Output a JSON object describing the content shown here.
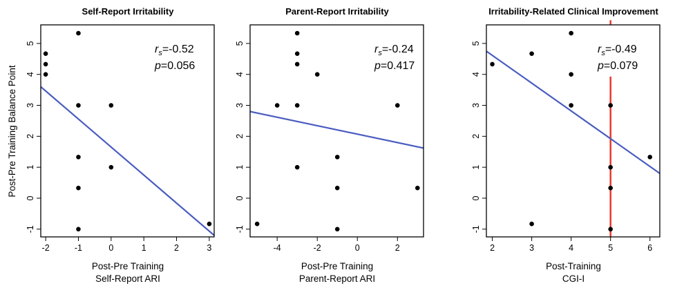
{
  "chart_data": [
    {
      "type": "scatter",
      "title": "Self-Report Irritability",
      "xlabel": [
        "Post-Pre Training",
        "Self-Report ARI"
      ],
      "ylabel": "Post-Pre Training Balance Point",
      "xlim": [
        -2.15,
        3.15
      ],
      "ylim": [
        -1.25,
        5.6
      ],
      "xticks": [
        -2,
        -1,
        0,
        1,
        2,
        3
      ],
      "yticks": [
        -1,
        0,
        1,
        2,
        3,
        4,
        5
      ],
      "points": [
        {
          "x": -2,
          "y": 4.0
        },
        {
          "x": -2,
          "y": 4.33
        },
        {
          "x": -2,
          "y": 4.67
        },
        {
          "x": -1,
          "y": 5.33
        },
        {
          "x": -1,
          "y": 3.0
        },
        {
          "x": -1,
          "y": 1.33
        },
        {
          "x": -1,
          "y": 0.33
        },
        {
          "x": -1,
          "y": -1.0
        },
        {
          "x": 0,
          "y": 3.0
        },
        {
          "x": 0,
          "y": 1.0
        },
        {
          "x": 3,
          "y": -0.83
        }
      ],
      "fit_line": [
        {
          "x": -2.15,
          "y": 3.6
        },
        {
          "x": 3.15,
          "y": -1.2
        }
      ],
      "stat_r": "=-0.52",
      "stat_p": "=0.056",
      "verticals": []
    },
    {
      "type": "scatter",
      "title": "Parent-Report Irritability",
      "xlabel": [
        "Post-Pre Training",
        "Parent-Report ARI"
      ],
      "ylabel": "",
      "xlim": [
        -5.35,
        3.3
      ],
      "ylim": [
        -1.25,
        5.6
      ],
      "xticks": [
        -4,
        -2,
        0,
        2
      ],
      "yticks": [
        -1,
        0,
        1,
        2,
        3,
        4,
        5
      ],
      "points": [
        {
          "x": -5,
          "y": -0.83
        },
        {
          "x": -4,
          "y": 3.0
        },
        {
          "x": -3,
          "y": 5.33
        },
        {
          "x": -3,
          "y": 4.67
        },
        {
          "x": -3,
          "y": 4.33
        },
        {
          "x": -3,
          "y": 3.0
        },
        {
          "x": -3,
          "y": 1.0
        },
        {
          "x": -2,
          "y": 4.0
        },
        {
          "x": -1,
          "y": 1.33
        },
        {
          "x": -1,
          "y": 0.33
        },
        {
          "x": -1,
          "y": -1.0
        },
        {
          "x": 2,
          "y": 3.0
        },
        {
          "x": 3,
          "y": 0.33
        }
      ],
      "fit_line": [
        {
          "x": -5.35,
          "y": 2.8
        },
        {
          "x": 3.3,
          "y": 1.62
        }
      ],
      "stat_r": "=-0.24",
      "stat_p": "=0.417",
      "verticals": []
    },
    {
      "type": "scatter",
      "title": "Irritability-Related Clinical Improvement",
      "xlabel": [
        "Post-Training",
        "CGI-I"
      ],
      "ylabel": "",
      "xlim": [
        1.85,
        6.25
      ],
      "ylim": [
        -1.25,
        5.6
      ],
      "xticks": [
        2,
        3,
        4,
        5,
        6
      ],
      "yticks": [
        -1,
        0,
        1,
        2,
        3,
        4,
        5
      ],
      "points": [
        {
          "x": 2,
          "y": 4.33
        },
        {
          "x": 3,
          "y": 4.67
        },
        {
          "x": 3,
          "y": -0.83
        },
        {
          "x": 4,
          "y": 5.33
        },
        {
          "x": 4,
          "y": 4.0
        },
        {
          "x": 4,
          "y": 3.0
        },
        {
          "x": 5,
          "y": 3.0
        },
        {
          "x": 5,
          "y": 1.0
        },
        {
          "x": 5,
          "y": 0.33
        },
        {
          "x": 5,
          "y": -1.0
        },
        {
          "x": 6,
          "y": 1.33
        }
      ],
      "fit_line": [
        {
          "x": 1.85,
          "y": 4.75
        },
        {
          "x": 6.25,
          "y": 0.8
        }
      ],
      "stat_r": "=-0.49",
      "stat_p": "=0.079",
      "verticals": [
        {
          "x": 5,
          "y0": -1.25,
          "y1": 3.93
        },
        {
          "x": 5,
          "y0": 5.6,
          "y1": 5.75
        }
      ]
    }
  ],
  "colors": {
    "fit": "#4a5cc0",
    "cutoff": "#e8392b",
    "points": "#000000"
  }
}
